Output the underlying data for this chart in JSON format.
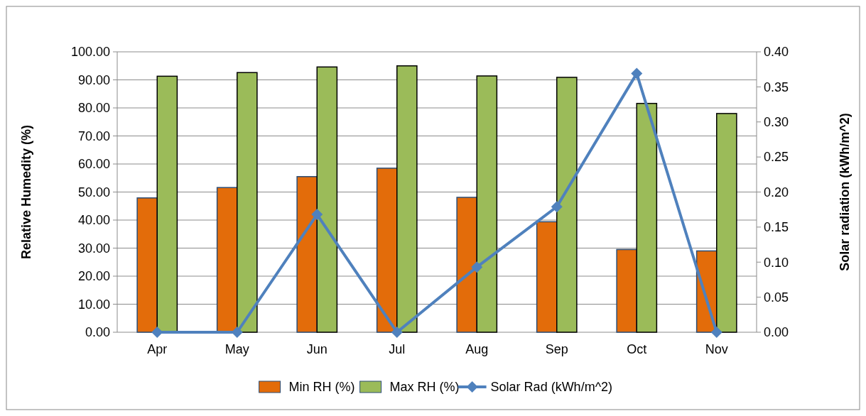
{
  "chart_data": {
    "type": "bar",
    "categories": [
      "Apr",
      "May",
      "Jun",
      "Jul",
      "Aug",
      "Sep",
      "Oct",
      "Nov"
    ],
    "series": [
      {
        "name": "Min RH (%)",
        "color": "#e36c0a",
        "values": [
          47.9,
          51.6,
          55.5,
          58.5,
          48.1,
          39.4,
          29.5,
          29.0
        ]
      },
      {
        "name": "Max RH (%)",
        "color": "#9bbb59",
        "values": [
          91.3,
          92.6,
          94.6,
          95.0,
          91.4,
          90.9,
          81.6,
          78.0
        ]
      },
      {
        "name": "Solar Rad (kWh/m^2)",
        "type": "line",
        "axis": "y2",
        "color": "#4f81bd",
        "marker": "diamond",
        "values": [
          0,
          0,
          0.168,
          0,
          0.093,
          0.179,
          0.369,
          0
        ]
      }
    ],
    "ylabel": "Relative Humedity (%)",
    "y2label": "Solar radiation (kWh/m^2)",
    "ylim": [
      0,
      100
    ],
    "yticks": [
      {
        "value": 0,
        "label": "0.00"
      },
      {
        "value": 10,
        "label": "10.00"
      },
      {
        "value": 20,
        "label": "20.00"
      },
      {
        "value": 30,
        "label": "30.00"
      },
      {
        "value": 40,
        "label": "40.00"
      },
      {
        "value": 50,
        "label": "50.00"
      },
      {
        "value": 60,
        "label": "60.00"
      },
      {
        "value": 70,
        "label": "70.00"
      },
      {
        "value": 80,
        "label": "80.00"
      },
      {
        "value": 90,
        "label": "90.00"
      },
      {
        "value": 100,
        "label": "100.00"
      }
    ],
    "y2lim": [
      0,
      0.4
    ],
    "y2ticks": [
      {
        "value": 0,
        "label": "0.00"
      },
      {
        "value": 0.05,
        "label": "0.05"
      },
      {
        "value": 0.1,
        "label": "0.10"
      },
      {
        "value": 0.15,
        "label": "0.15"
      },
      {
        "value": 0.2,
        "label": "0.20"
      },
      {
        "value": 0.25,
        "label": "0.25"
      },
      {
        "value": 0.3,
        "label": "0.30"
      },
      {
        "value": 0.35,
        "label": "0.35"
      },
      {
        "value": 0.4,
        "label": "0.40"
      }
    ],
    "grid": "y",
    "legend": "bottom"
  }
}
